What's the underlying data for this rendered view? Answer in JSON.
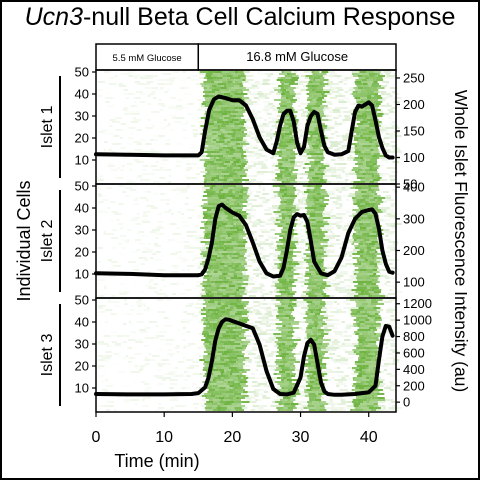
{
  "title": {
    "italic": "Ucn3",
    "rest": "-null Beta Cell Calcium Response"
  },
  "conditions": [
    {
      "label": "5.5 mM Glucose",
      "range": [
        0,
        15
      ]
    },
    {
      "label": "16.8 mM Glucose",
      "range": [
        15,
        44
      ]
    }
  ],
  "colors": {
    "activity": "#6db33f",
    "trace": "#000000",
    "background": "#ffffff"
  },
  "chart_data": {
    "type": "line",
    "x_label": "Time (min)",
    "x_ticks": [
      0,
      10,
      20,
      30,
      40
    ],
    "xlim": [
      0,
      44
    ],
    "left_axis_group_label": "Individual Cells",
    "right_axis_label": "Whole Islet Fluorescence Intensity (au)",
    "active_periods_min": [
      [
        15.5,
        21.5
      ],
      [
        26.3,
        28.8
      ],
      [
        30.6,
        33.1
      ],
      [
        37.6,
        41.2
      ]
    ],
    "panels": [
      {
        "label": "Islet 1",
        "cells_ticks": [
          10,
          20,
          30,
          40,
          50
        ],
        "cells_range": [
          0,
          50
        ],
        "intensity_ticks": [
          50,
          100,
          150,
          200,
          250
        ],
        "intensity_range": [
          50,
          265
        ],
        "trace": {
          "x": [
            0,
            5,
            10,
            15,
            15.5,
            16,
            16.6,
            17.3,
            18,
            19,
            20,
            21,
            22,
            23,
            24,
            25,
            26,
            26.5,
            27,
            27.5,
            28,
            28.5,
            29,
            29.5,
            30,
            30.5,
            31,
            31.5,
            32,
            32.5,
            33,
            33.5,
            34,
            35,
            36,
            37,
            37.5,
            38,
            38.5,
            39,
            39.5,
            40,
            40.5,
            41,
            41.5,
            42,
            42.5,
            43,
            43.5
          ],
          "y": [
            106,
            105,
            104,
            104,
            110,
            150,
            190,
            210,
            215,
            212,
            208,
            208,
            198,
            172,
            138,
            115,
            108,
            130,
            160,
            182,
            188,
            188,
            168,
            128,
            108,
            120,
            160,
            178,
            186,
            182,
            150,
            122,
            110,
            105,
            106,
            112,
            150,
            186,
            198,
            196,
            200,
            204,
            198,
            170,
            138,
            118,
            104,
            100,
            100
          ]
        }
      },
      {
        "label": "Islet 2",
        "cells_ticks": [
          10,
          20,
          30,
          40,
          50
        ],
        "cells_range": [
          0,
          50
        ],
        "intensity_ticks": [
          100,
          200,
          300,
          400
        ],
        "intensity_range": [
          50,
          410
        ],
        "trace": {
          "x": [
            0,
            5,
            10,
            15,
            15.5,
            16,
            16.5,
            17,
            17.5,
            18,
            18.5,
            19,
            20,
            21,
            22,
            23,
            24,
            25,
            26,
            27,
            27.5,
            28,
            28.5,
            29,
            29.5,
            30,
            30.5,
            31,
            31.5,
            32,
            33,
            34,
            35,
            36,
            37,
            38,
            39,
            40,
            40.5,
            41,
            41.5,
            42,
            42.5,
            43,
            43.5
          ],
          "y": [
            128,
            126,
            122,
            122,
            125,
            140,
            175,
            225,
            300,
            340,
            345,
            335,
            320,
            310,
            280,
            225,
            165,
            128,
            118,
            120,
            145,
            200,
            265,
            305,
            315,
            310,
            312,
            290,
            230,
            165,
            128,
            122,
            135,
            178,
            255,
            300,
            322,
            328,
            330,
            316,
            268,
            200,
            158,
            133,
            130
          ]
        }
      },
      {
        "label": "Islet 3",
        "cells_ticks": [
          10,
          20,
          30,
          40,
          50
        ],
        "cells_range": [
          0,
          50
        ],
        "intensity_ticks": [
          0,
          200,
          400,
          600,
          800,
          1000,
          1200
        ],
        "intensity_range": [
          -120,
          1270
        ],
        "trace": {
          "x": [
            0,
            5,
            10,
            14,
            15,
            16,
            16.5,
            17,
            17.5,
            18,
            18.5,
            19,
            19.5,
            20,
            21,
            22,
            23,
            24,
            25,
            26,
            27,
            28,
            29,
            30,
            30.5,
            31,
            31.5,
            32,
            32.5,
            33,
            33.5,
            34,
            35,
            36,
            37,
            38,
            39,
            40,
            41,
            41.5,
            42,
            42.5,
            43,
            43.5
          ],
          "y": [
            100,
            95,
            95,
            100,
            110,
            180,
            300,
            500,
            750,
            900,
            980,
            1010,
            1005,
            990,
            960,
            930,
            900,
            700,
            380,
            160,
            100,
            95,
            115,
            300,
            560,
            720,
            760,
            700,
            470,
            240,
            130,
            100,
            90,
            90,
            95,
            100,
            110,
            120,
            200,
            520,
            800,
            930,
            920,
            810
          ]
        }
      }
    ]
  }
}
